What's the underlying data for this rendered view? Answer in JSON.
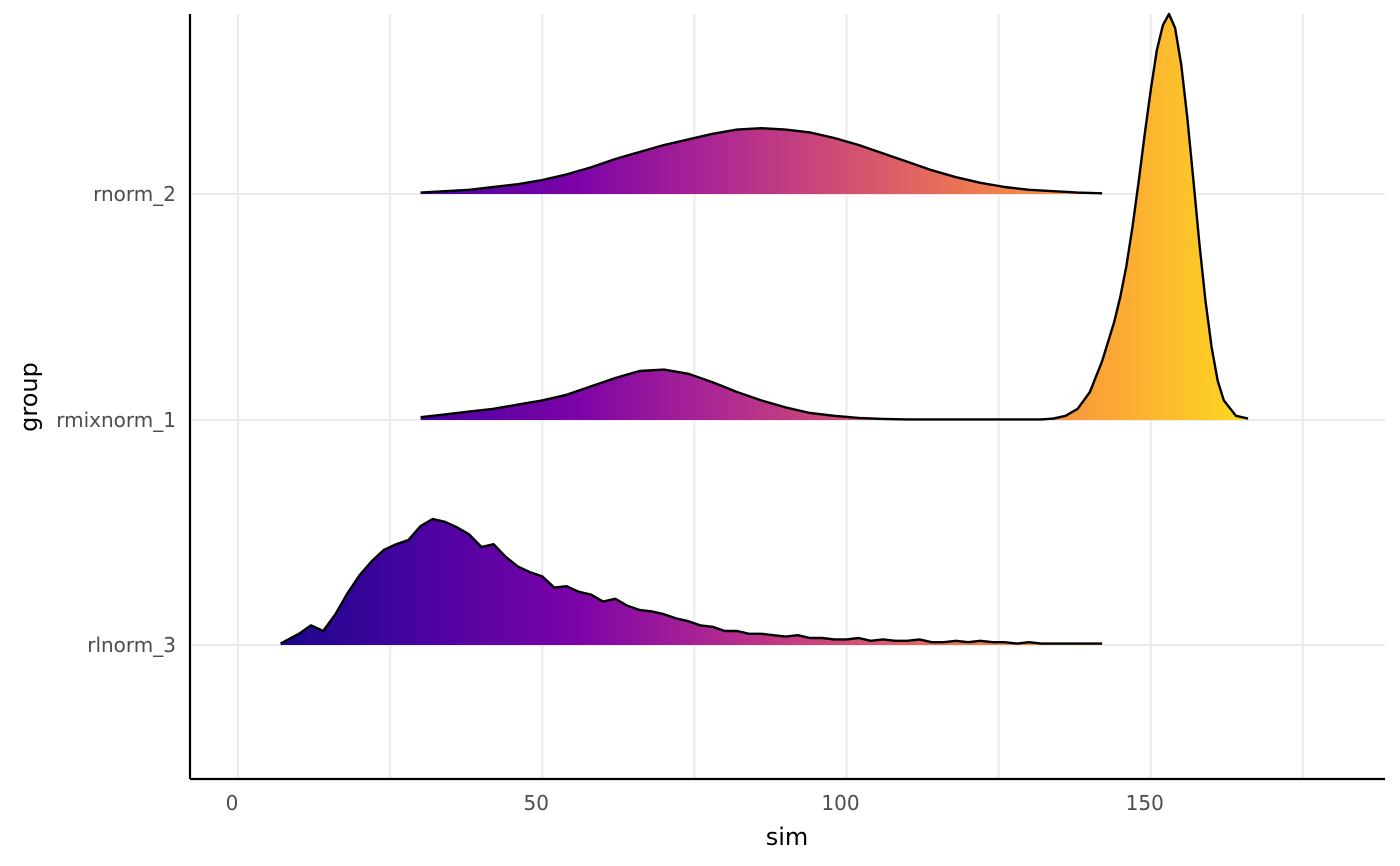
{
  "chart_data": {
    "type": "area",
    "subtype": "density-ridgeline",
    "xlabel": "sim",
    "ylabel": "group",
    "xlim": [
      -8,
      188
    ],
    "x_ticks": [
      0,
      50,
      100,
      150
    ],
    "categories": [
      "rlnorm_3",
      "rmixnorm_1",
      "rnorm_2"
    ],
    "grid": true,
    "legend": "none",
    "fill_palette": [
      "#0d0887",
      "#6a00a8",
      "#b12a90",
      "#e16462",
      "#fca636",
      "#f0f921"
    ],
    "outline_color": "#000000",
    "series": [
      {
        "name": "rlnorm_3",
        "x": [
          7,
          10,
          12,
          14,
          16,
          18,
          20,
          22,
          24,
          26,
          28,
          30,
          32,
          34,
          36,
          38,
          40,
          42,
          44,
          46,
          48,
          50,
          52,
          54,
          56,
          58,
          60,
          62,
          64,
          66,
          68,
          70,
          72,
          74,
          76,
          78,
          80,
          82,
          84,
          86,
          88,
          90,
          92,
          94,
          96,
          98,
          100,
          102,
          104,
          106,
          108,
          110,
          112,
          114,
          116,
          118,
          120,
          122,
          124,
          126,
          128,
          130,
          132,
          134,
          136,
          138,
          140,
          142
        ],
        "y": [
          0.01,
          0.08,
          0.14,
          0.1,
          0.22,
          0.37,
          0.5,
          0.6,
          0.68,
          0.72,
          0.75,
          0.85,
          0.9,
          0.88,
          0.84,
          0.79,
          0.7,
          0.72,
          0.63,
          0.56,
          0.52,
          0.49,
          0.41,
          0.42,
          0.38,
          0.36,
          0.31,
          0.33,
          0.28,
          0.25,
          0.24,
          0.22,
          0.19,
          0.17,
          0.14,
          0.13,
          0.1,
          0.1,
          0.08,
          0.08,
          0.07,
          0.06,
          0.07,
          0.05,
          0.05,
          0.04,
          0.04,
          0.05,
          0.03,
          0.04,
          0.03,
          0.03,
          0.04,
          0.02,
          0.02,
          0.03,
          0.02,
          0.03,
          0.02,
          0.02,
          0.01,
          0.02,
          0.01,
          0.01,
          0.01,
          0.01,
          0.01,
          0.01
        ]
      },
      {
        "name": "rmixnorm_1",
        "x": [
          30,
          34,
          38,
          42,
          46,
          50,
          54,
          58,
          62,
          66,
          70,
          74,
          78,
          82,
          86,
          90,
          94,
          98,
          102,
          106,
          110,
          132,
          134,
          136,
          138,
          140,
          142,
          144,
          145,
          146,
          147,
          148,
          149,
          150,
          151,
          152,
          153,
          154,
          155,
          156,
          157,
          158,
          159,
          160,
          161,
          162,
          164,
          166
        ],
        "y": [
          0.02,
          0.04,
          0.06,
          0.08,
          0.11,
          0.14,
          0.18,
          0.24,
          0.3,
          0.35,
          0.36,
          0.33,
          0.27,
          0.2,
          0.14,
          0.09,
          0.05,
          0.03,
          0.015,
          0.008,
          0.004,
          0.004,
          0.01,
          0.03,
          0.08,
          0.2,
          0.42,
          0.7,
          0.88,
          1.1,
          1.38,
          1.7,
          2.04,
          2.36,
          2.64,
          2.82,
          2.9,
          2.8,
          2.54,
          2.16,
          1.72,
          1.26,
          0.85,
          0.52,
          0.28,
          0.14,
          0.03,
          0.01
        ]
      },
      {
        "name": "rnorm_2",
        "x": [
          30,
          34,
          38,
          42,
          46,
          50,
          54,
          58,
          62,
          66,
          70,
          74,
          78,
          82,
          86,
          90,
          94,
          98,
          102,
          106,
          110,
          114,
          118,
          122,
          126,
          130,
          134,
          138,
          142
        ],
        "y": [
          0.01,
          0.02,
          0.03,
          0.05,
          0.07,
          0.1,
          0.14,
          0.19,
          0.25,
          0.3,
          0.35,
          0.39,
          0.43,
          0.46,
          0.47,
          0.46,
          0.44,
          0.4,
          0.35,
          0.29,
          0.23,
          0.17,
          0.12,
          0.08,
          0.05,
          0.03,
          0.02,
          0.01,
          0.005
        ]
      }
    ]
  }
}
